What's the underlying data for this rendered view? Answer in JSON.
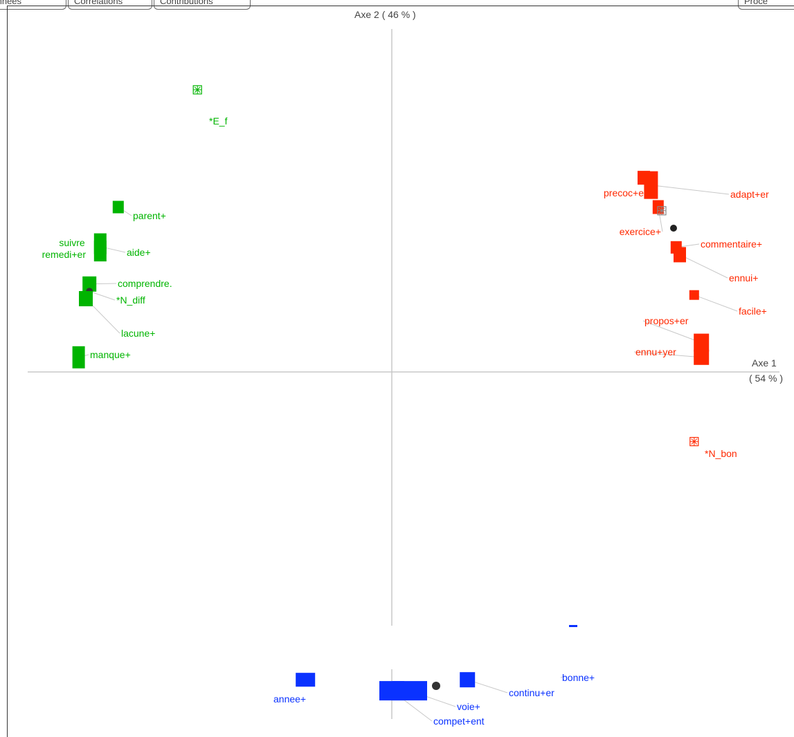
{
  "tabs": [
    {
      "label": "Données"
    },
    {
      "label": "Corrélations"
    },
    {
      "label": "Contributions"
    },
    {
      "label": "Proce"
    }
  ],
  "colors": {
    "green": "#00b400",
    "red": "#ff2800",
    "blue": "#0a32ff",
    "axis": "#c8c8c8",
    "leader": "#c8c8c8"
  },
  "chart_data": {
    "type": "scatter",
    "title": "",
    "xlabel": "Axe 1",
    "xlabel_pct": "( 54 % )",
    "ylabel": "Axe 2",
    "ylabel_pct": "( 46 % )",
    "xlim": [
      -1.0,
      1.0
    ],
    "ylim": [
      -1.0,
      1.0
    ],
    "grid": false,
    "series": [
      {
        "color": "#00b400",
        "points": [
          {
            "label": "*E_f",
            "x": -0.54,
            "y": 0.77,
            "kind": "modality"
          },
          {
            "label": "parent+",
            "x": -0.76,
            "y": 0.45,
            "kind": "word"
          },
          {
            "label": "suivre",
            "x": -0.81,
            "y": 0.35,
            "kind": "word"
          },
          {
            "label": "remedi+er",
            "x": -0.81,
            "y": 0.33,
            "kind": "word"
          },
          {
            "label": "aide+",
            "x": -0.8,
            "y": 0.34,
            "kind": "word"
          },
          {
            "label": "comprendre.",
            "x": -0.84,
            "y": 0.24,
            "kind": "word"
          },
          {
            "label": "*N_diff",
            "x": -0.84,
            "y": 0.22,
            "kind": "centroid"
          },
          {
            "label": "lacune+",
            "x": -0.85,
            "y": 0.2,
            "kind": "word"
          },
          {
            "label": "manque+",
            "x": -0.87,
            "y": 0.04,
            "kind": "word"
          }
        ]
      },
      {
        "color": "#ff2800",
        "points": [
          {
            "label": "precoc+e",
            "x": 0.7,
            "y": 0.53,
            "kind": "word"
          },
          {
            "label": "adapt+er",
            "x": 0.72,
            "y": 0.51,
            "kind": "word"
          },
          {
            "label": "exercice+",
            "x": 0.74,
            "y": 0.45,
            "kind": "word"
          },
          {
            "label": "*N_bon",
            "x": 0.75,
            "y": 0.44,
            "kind": "modality"
          },
          {
            "label": "commentaire+",
            "x": 0.79,
            "y": 0.34,
            "kind": "word"
          },
          {
            "label": "ennui+",
            "x": 0.8,
            "y": 0.32,
            "kind": "word"
          },
          {
            "label": "facile+",
            "x": 0.84,
            "y": 0.21,
            "kind": "word"
          },
          {
            "label": "propos+er",
            "x": 0.86,
            "y": 0.08,
            "kind": "word"
          },
          {
            "label": "ennu+yer",
            "x": 0.86,
            "y": 0.04,
            "kind": "word"
          },
          {
            "label": "*N_bon",
            "x": 0.84,
            "y": -0.19,
            "kind": "modality"
          }
        ]
      },
      {
        "color": "#0a32ff",
        "points": [
          {
            "label": "annee+",
            "x": -0.24,
            "y": -0.84,
            "kind": "word"
          },
          {
            "label": "voie+",
            "x": 0.05,
            "y": -0.87,
            "kind": "word"
          },
          {
            "label": "compet+ent",
            "x": 0.0,
            "y": -0.87,
            "kind": "word"
          },
          {
            "label": "continu+er",
            "x": 0.21,
            "y": -0.84,
            "kind": "word"
          },
          {
            "label": "bonne+",
            "x": 0.48,
            "y": -0.83,
            "kind": "word"
          }
        ]
      }
    ]
  }
}
